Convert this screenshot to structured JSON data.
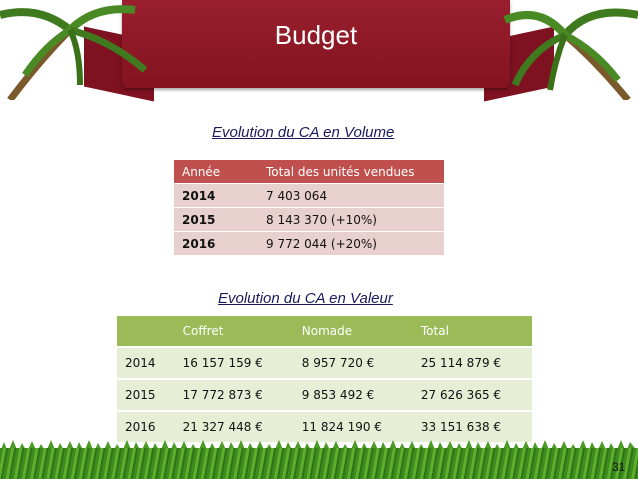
{
  "header": {
    "title": "Budget"
  },
  "volume": {
    "subtitle": "Evolution du CA en Volume",
    "headers": [
      "Année",
      "Total des unités vendues"
    ],
    "rows": [
      [
        "2014",
        "7 403 064"
      ],
      [
        "2015",
        "8 143 370 (+10%)"
      ],
      [
        "2016",
        "9 772 044 (+20%)"
      ]
    ]
  },
  "valeur": {
    "subtitle": "Evolution du CA en Valeur",
    "headers": [
      "",
      "Coffret",
      "Nomade",
      "Total"
    ],
    "rows": [
      [
        "2014",
        "16 157 159 €",
        "8 957 720 €",
        "25 114 879 €"
      ],
      [
        "2015",
        "17 772 873 €",
        "9 853 492 €",
        "27 626 365 €"
      ],
      [
        "2016",
        "21 327 448 €",
        "11 824 190 €",
        "33 151 638 €"
      ]
    ]
  },
  "footer": {
    "page_number": "31"
  },
  "colors": {
    "banner": "#8b1a27",
    "table1_header": "#c0504d",
    "table1_row": "#e8d0cf",
    "table2_header": "#9bbb59",
    "table2_row": "#e6eed5"
  },
  "icons": [
    "palm-tree-left-icon",
    "palm-tree-right-icon",
    "grass-decoration"
  ]
}
